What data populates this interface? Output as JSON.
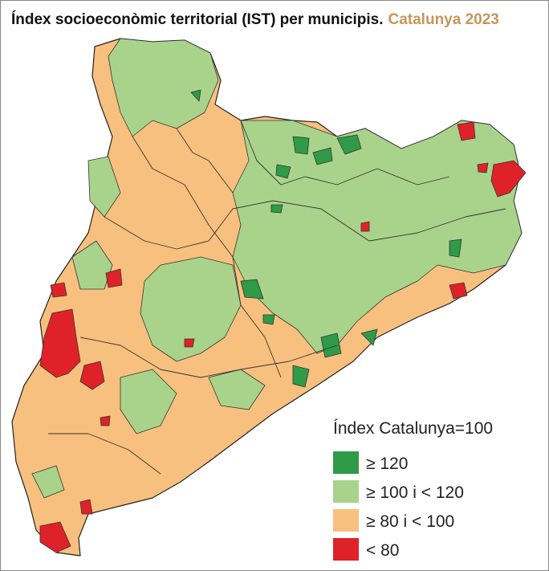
{
  "title": "Índex socioeconòmic territorial (IST) per municipis.",
  "subtitle": "Catalunya 2023",
  "legend": {
    "title": "Índex Catalunya=100",
    "items": [
      {
        "label": "≥ 120",
        "color": "#2f9a48"
      },
      {
        "label": "≥ 100 i < 120",
        "color": "#a9d38b"
      },
      {
        "label": "≥ 80 i < 100",
        "color": "#f8c07e"
      },
      {
        "label": "< 80",
        "color": "#df2229"
      }
    ]
  }
}
